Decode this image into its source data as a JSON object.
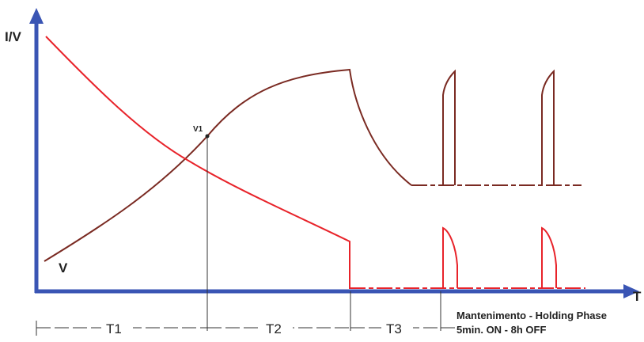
{
  "diagram": {
    "y_axis_label": "I/V",
    "x_axis_label": "T",
    "voltage_label": "V",
    "point_label": "V1",
    "segments": [
      {
        "label": "T1"
      },
      {
        "label": "T2"
      },
      {
        "label": "T3"
      }
    ],
    "holding_phase": {
      "line1": "Mantenimento - Holding Phase",
      "line2": "5min. ON - 8h OFF"
    },
    "colors": {
      "axis": "#3a55b4",
      "voltage_curve": "#7a2a22",
      "current_curve": "#e8232a",
      "guide_lines": "#333333"
    }
  }
}
